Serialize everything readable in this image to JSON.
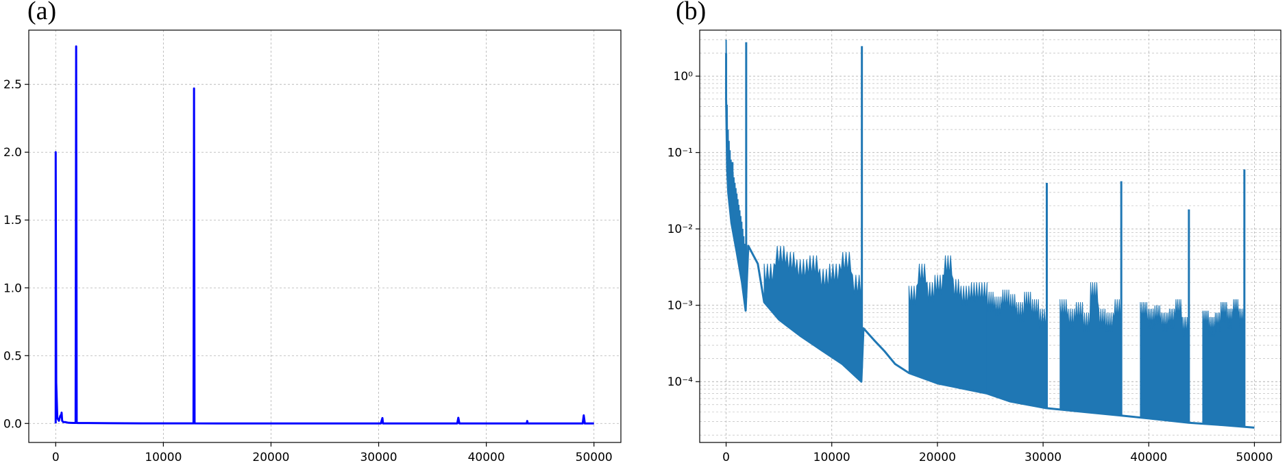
{
  "chart_data": [
    {
      "type": "line",
      "panel_label": "(a)",
      "title": "",
      "xlabel": "",
      "ylabel": "",
      "xlim": [
        -2500,
        52500
      ],
      "ylim": [
        -0.14,
        2.9
      ],
      "yscale": "linear",
      "grid": true,
      "line_color": "#0000ff",
      "x_ticks": [
        0,
        10000,
        20000,
        30000,
        40000,
        50000
      ],
      "x_tick_labels": [
        "0",
        "10000",
        "20000",
        "30000",
        "40000",
        "50000"
      ],
      "y_ticks": [
        0.0,
        0.5,
        1.0,
        1.5,
        2.0,
        2.5
      ],
      "y_tick_labels": [
        "0.0",
        "0.5",
        "1.0",
        "1.5",
        "2.0",
        "2.5"
      ],
      "series": [
        {
          "x": [
            0,
            0,
            50,
            150,
            300,
            400,
            450,
            500,
            550,
            600,
            700,
            900,
            1200,
            1600,
            1850,
            1900,
            1950,
            2100,
            3000,
            5000,
            8000,
            12000,
            12800,
            12850,
            12900,
            13000,
            15000,
            20000,
            25000,
            30200,
            30350,
            30400,
            30500,
            37300,
            37400,
            37500,
            43750,
            43800,
            43850,
            48950,
            49050,
            49150,
            50000
          ],
          "y": [
            0.0,
            2.0,
            0.3,
            0.04,
            0.02,
            0.05,
            0.06,
            0.05,
            0.08,
            0.02,
            0.01,
            0.01,
            0.005,
            0.004,
            0.004,
            2.78,
            0.004,
            0.003,
            0.003,
            0.002,
            0.001,
            0.001,
            0.001,
            2.47,
            0.001,
            0.0005,
            0.0003,
            0.0002,
            0.0001,
            0.0001,
            0.04,
            0.0001,
            5e-05,
            5e-05,
            0.042,
            5e-05,
            3e-05,
            0.018,
            3e-05,
            3e-05,
            0.06,
            3e-05,
            3e-05
          ]
        }
      ]
    },
    {
      "type": "line",
      "panel_label": "(b)",
      "title": "",
      "xlabel": "",
      "ylabel": "",
      "xlim": [
        -2500,
        52500
      ],
      "ylim": [
        1.6e-05,
        4.0
      ],
      "yscale": "log",
      "grid": true,
      "line_color": "#1f77b4",
      "x_ticks": [
        0,
        10000,
        20000,
        30000,
        40000,
        50000
      ],
      "x_tick_labels": [
        "0",
        "10000",
        "20000",
        "30000",
        "40000",
        "50000"
      ],
      "y_ticks": [
        0.0001,
        0.001,
        0.01,
        0.1,
        1
      ],
      "y_tick_labels": [
        "10⁻⁴",
        "10⁻³",
        "10⁻²",
        "10⁻¹",
        "10⁰"
      ],
      "floor_curve": {
        "x": [
          0,
          100,
          200,
          500,
          1000,
          1500,
          1850,
          2100,
          3000,
          3600,
          5000,
          7000,
          9000,
          11000,
          12800,
          13000,
          14000,
          15000,
          16000,
          17300,
          20000,
          24700,
          26900,
          30300,
          34000,
          37400,
          40000,
          43800,
          47000,
          50000
        ],
        "y": [
          0.5,
          0.06,
          0.03,
          0.012,
          0.005,
          0.002,
          0.00085,
          0.006,
          0.0035,
          0.0011,
          0.00065,
          0.0004,
          0.00026,
          0.00017,
          0.0001,
          0.0005,
          0.00035,
          0.00025,
          0.00017,
          0.00013,
          9.5e-05,
          7e-05,
          5.5e-05,
          4.5e-05,
          4e-05,
          3.6e-05,
          3.3e-05,
          2.9e-05,
          2.7e-05,
          2.5e-05
        ]
      },
      "oscillation_bands": [
        {
          "x_start": 3600,
          "x_end": 12900,
          "top": [
            0.0035,
            0.006,
            0.005,
            0.004,
            0.0045,
            0.003,
            0.0035,
            0.005,
            0.0025
          ]
        },
        {
          "x_start": 17300,
          "x_end": 24700,
          "top": [
            0.0018,
            0.0035,
            0.002,
            0.0025,
            0.0045,
            0.0022,
            0.0018,
            0.002,
            0.002
          ]
        },
        {
          "x_start": 24700,
          "x_end": 30300,
          "top": [
            0.0015,
            0.0013,
            0.0016,
            0.0014,
            0.0011,
            0.0015,
            0.0012,
            0.0009
          ]
        },
        {
          "x_start": 31600,
          "x_end": 37400,
          "top": [
            0.0012,
            0.0009,
            0.0011,
            0.0008,
            0.002,
            0.0009,
            0.0008,
            0.0012
          ]
        },
        {
          "x_start": 39200,
          "x_end": 43800,
          "top": [
            0.0011,
            0.0009,
            0.001,
            0.0008,
            0.0009,
            0.0012,
            0.0007
          ]
        },
        {
          "x_start": 45100,
          "x_end": 49100,
          "top": [
            0.00085,
            0.0007,
            0.0008,
            0.0011,
            0.0009,
            0.0012,
            0.0009
          ]
        }
      ],
      "spikes": [
        {
          "x": 0,
          "y": 2.0
        },
        {
          "x": 300,
          "y": 0.04
        },
        {
          "x": 450,
          "y": 0.055
        },
        {
          "x": 600,
          "y": 0.075
        },
        {
          "x": 1900,
          "y": 2.78
        },
        {
          "x": 12850,
          "y": 2.47
        },
        {
          "x": 30350,
          "y": 0.04
        },
        {
          "x": 37400,
          "y": 0.042
        },
        {
          "x": 43800,
          "y": 0.018
        },
        {
          "x": 49050,
          "y": 0.06
        }
      ]
    }
  ]
}
